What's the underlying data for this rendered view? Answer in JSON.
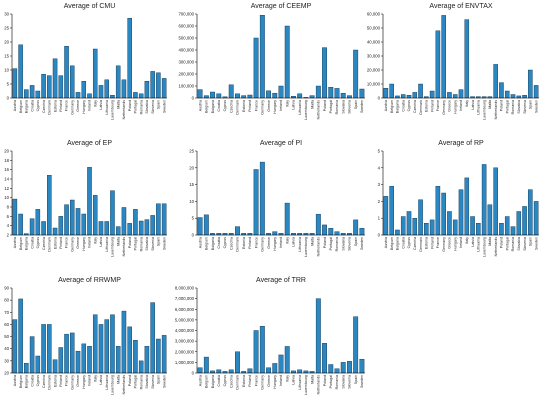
{
  "colors": {
    "bar_fill": "#2a87c2",
    "bar_stroke": "#0d2f4a",
    "axis": "#000000"
  },
  "country_order": [
    "Austria",
    "Belgium",
    "Bulgaria",
    "Croatia",
    "Cyprus",
    "Czechia",
    "Denmark",
    "Estonia",
    "Finland",
    "France",
    "Germany",
    "Greece",
    "Hungary",
    "Ireland",
    "Italy",
    "Latvia",
    "Lithuania",
    "Luxembourg",
    "Malta",
    "Netherlands",
    "Poland",
    "Portugal",
    "Romania",
    "Slovakia",
    "Slovenia",
    "Spain",
    "Sweden"
  ],
  "chart_data": [
    {
      "type": "bar",
      "title": "Average of CMU",
      "categories": [
        "Austria",
        "Belgium",
        "Bulgaria",
        "Croatia",
        "Cyprus",
        "Czechia",
        "Denmark",
        "Estonia",
        "Finland",
        "France",
        "Germany",
        "Greece",
        "Hungary",
        "Ireland",
        "Italy",
        "Latvia",
        "Lithuania",
        "Luxembourg",
        "Malta",
        "Netherlands",
        "Poland",
        "Portugal",
        "Romania",
        "Slovakia",
        "Slovenia",
        "Spain",
        "Sweden"
      ],
      "values": [
        10.5,
        19,
        3,
        4.5,
        2.5,
        8.5,
        8,
        14,
        8,
        18.5,
        11.5,
        2,
        6,
        1.5,
        17.5,
        4.5,
        6.5,
        1,
        11.5,
        6.5,
        28.5,
        2,
        1.5,
        6,
        9.5,
        9,
        7
      ],
      "ylim": [
        0,
        30
      ],
      "yticks": [
        "0",
        "5",
        "10",
        "15",
        "20",
        "25",
        "30"
      ]
    },
    {
      "type": "bar",
      "title": "Average of CEEMP",
      "categories": [
        "Austria",
        "Belgium",
        "Bulgaria",
        "Croatia",
        "Cyprus",
        "Czechia",
        "Denmark",
        "Estonia",
        "Finland",
        "France",
        "Germany",
        "Greece",
        "Hungary",
        "Ireland",
        "Italy",
        "Latvia",
        "Lithuania",
        "Luxembourg",
        "Malta",
        "Netherlands",
        "Poland",
        "Portugal",
        "Romania",
        "Slovakia",
        "Slovenia",
        "Spain",
        "Sweden"
      ],
      "values": [
        70000,
        20000,
        50000,
        35000,
        10000,
        110000,
        35000,
        20000,
        25000,
        500000,
        690000,
        60000,
        40000,
        100000,
        600000,
        15000,
        35000,
        5000,
        20000,
        100000,
        420000,
        90000,
        80000,
        40000,
        20000,
        400000,
        75000
      ],
      "ylim": [
        0,
        700000
      ],
      "yticks": [
        "0",
        "100,000",
        "200,000",
        "300,000",
        "400,000",
        "500,000",
        "600,000",
        "700,000"
      ]
    },
    {
      "type": "bar",
      "title": "Average of ENVTAX",
      "categories": [
        "Austria",
        "Belgium",
        "Bulgaria",
        "Croatia",
        "Cyprus",
        "Czechia",
        "Denmark",
        "Estonia",
        "Finland",
        "France",
        "Germany",
        "Greece",
        "Hungary",
        "Ireland",
        "Italy",
        "Latvia",
        "Lithuania",
        "Luxembourg",
        "Malta",
        "Netherlands",
        "Poland",
        "Portugal",
        "Romania",
        "Slovakia",
        "Slovenia",
        "Spain",
        "Sweden"
      ],
      "values": [
        7000,
        10000,
        1500,
        2500,
        2000,
        4000,
        10000,
        1000,
        5000,
        48000,
        59000,
        4000,
        2500,
        6000,
        56000,
        1000,
        1000,
        1000,
        1000,
        24000,
        11000,
        5000,
        2500,
        1500,
        2000,
        20000,
        9000
      ],
      "ylim": [
        0,
        60000
      ],
      "yticks": [
        "0",
        "10,000",
        "20,000",
        "30,000",
        "40,000",
        "50,000",
        "60,000"
      ]
    },
    {
      "type": "bar",
      "title": "Average of EP",
      "categories": [
        "Austria",
        "Belgium",
        "Bulgaria",
        "Croatia",
        "Cyprus",
        "Czechia",
        "Denmark",
        "Estonia",
        "Finland",
        "France",
        "Germany",
        "Greece",
        "Hungary",
        "Ireland",
        "Italy",
        "Latvia",
        "Lithuania",
        "Luxembourg",
        "Malta",
        "Netherlands",
        "Poland",
        "Portugal",
        "Romania",
        "Slovakia",
        "Slovenia",
        "Spain",
        "Sweden"
      ],
      "values": [
        9.7,
        6.5,
        2.3,
        5.5,
        7.5,
        4.9,
        14.8,
        3.5,
        6,
        8.5,
        9.5,
        7.7,
        6.5,
        16.5,
        10.5,
        4.9,
        4.9,
        11.5,
        3.8,
        7.9,
        4.5,
        7.5,
        5,
        5.3,
        6.2,
        8.7,
        8.7
      ],
      "ylim": [
        2,
        20
      ],
      "yticks": [
        "2",
        "4",
        "6",
        "8",
        "10",
        "12",
        "14",
        "16",
        "18",
        "20"
      ]
    },
    {
      "type": "bar",
      "title": "Average of PI",
      "categories": [
        "Austria",
        "Belgium",
        "Bulgaria",
        "Croatia",
        "Cyprus",
        "Czechia",
        "Denmark",
        "Estonia",
        "Finland",
        "France",
        "Germany",
        "Greece",
        "Hungary",
        "Ireland",
        "Italy",
        "Latvia",
        "Lithuania",
        "Luxembourg",
        "Malta",
        "Netherlands",
        "Poland",
        "Portugal",
        "Romania",
        "Slovakia",
        "Slovenia",
        "Spain",
        "Sweden"
      ],
      "values": [
        5.2,
        6,
        0.5,
        0.5,
        0.5,
        0.5,
        2.5,
        0.5,
        0.5,
        19.5,
        21.7,
        0.5,
        1,
        0.5,
        9.5,
        0.5,
        0.5,
        0.5,
        0.5,
        6.2,
        3,
        2,
        1,
        0.5,
        0.5,
        4.5,
        2
      ],
      "ylim": [
        0,
        25
      ],
      "yticks": [
        "0",
        "5",
        "10",
        "15",
        "20",
        "25"
      ]
    },
    {
      "type": "bar",
      "title": "Average of RP",
      "categories": [
        "Austria",
        "Belgium",
        "Bulgaria",
        "Croatia",
        "Cyprus",
        "Czechia",
        "Denmark",
        "Estonia",
        "Finland",
        "France",
        "Germany",
        "Greece",
        "Hungary",
        "Ireland",
        "Italy",
        "Latvia",
        "Lithuania",
        "Luxembourg",
        "Malta",
        "Netherlands",
        "Poland",
        "Portugal",
        "Romania",
        "Slovakia",
        "Slovenia",
        "Spain",
        "Sweden"
      ],
      "values": [
        2.3,
        2.9,
        0.3,
        1.1,
        1.4,
        1,
        2.1,
        0.7,
        0.9,
        2.9,
        2.5,
        1.4,
        0.9,
        2.7,
        3.4,
        1.1,
        0.7,
        4.2,
        1.8,
        4,
        0.7,
        1.1,
        0.5,
        1.4,
        1.7,
        2.7,
        2
      ],
      "ylim": [
        0,
        5
      ],
      "yticks": [
        "0",
        "1",
        "2",
        "3",
        "4",
        "5"
      ]
    },
    {
      "type": "bar",
      "title": "Average of RRWMP",
      "categories": [
        "Austria",
        "Belgium",
        "Bulgaria",
        "Croatia",
        "Cyprus",
        "Czechia",
        "Denmark",
        "Estonia",
        "Finland",
        "France",
        "Germany",
        "Greece",
        "Hungary",
        "Ireland",
        "Italy",
        "Latvia",
        "Lithuania",
        "Luxembourg",
        "Malta",
        "Netherlands",
        "Poland",
        "Portugal",
        "Romania",
        "Slovakia",
        "Slovenia",
        "Spain",
        "Sweden"
      ],
      "values": [
        64,
        81,
        28,
        50,
        34,
        60,
        60,
        31,
        41,
        52,
        53,
        38,
        44,
        42,
        68,
        60,
        64,
        68,
        42,
        71,
        58,
        47,
        30,
        42,
        78,
        48,
        51
      ],
      "ylim": [
        20,
        90
      ],
      "yticks": [
        "20",
        "30",
        "40",
        "50",
        "60",
        "70",
        "80",
        "90"
      ]
    },
    {
      "type": "bar",
      "title": "Average of TRR",
      "categories": [
        "Austria",
        "Belgium",
        "Bulgaria",
        "Croatia",
        "Cyprus",
        "Czechia",
        "Denmark",
        "Estonia",
        "Finland",
        "France",
        "Germany",
        "Greece",
        "Hungary",
        "Ireland",
        "Italy",
        "Latvia",
        "Lithuania",
        "Luxembourg",
        "Malta",
        "Netherlands",
        "Poland",
        "Portugal",
        "Romania",
        "Slovakia",
        "Slovenia",
        "Spain",
        "Sweden"
      ],
      "values": [
        500000,
        1500000,
        200000,
        300000,
        150000,
        300000,
        2000000,
        150000,
        400000,
        4000000,
        4400000,
        500000,
        900000,
        1700000,
        2500000,
        200000,
        300000,
        200000,
        150000,
        7000000,
        2800000,
        800000,
        400000,
        1000000,
        1100000,
        5300000,
        1300000
      ],
      "ylim": [
        0,
        8000000
      ],
      "yticks": [
        "0",
        "1,000,000",
        "2,000,000",
        "3,000,000",
        "4,000,000",
        "5,000,000",
        "6,000,000",
        "7,000,000",
        "8,000,000"
      ]
    }
  ]
}
